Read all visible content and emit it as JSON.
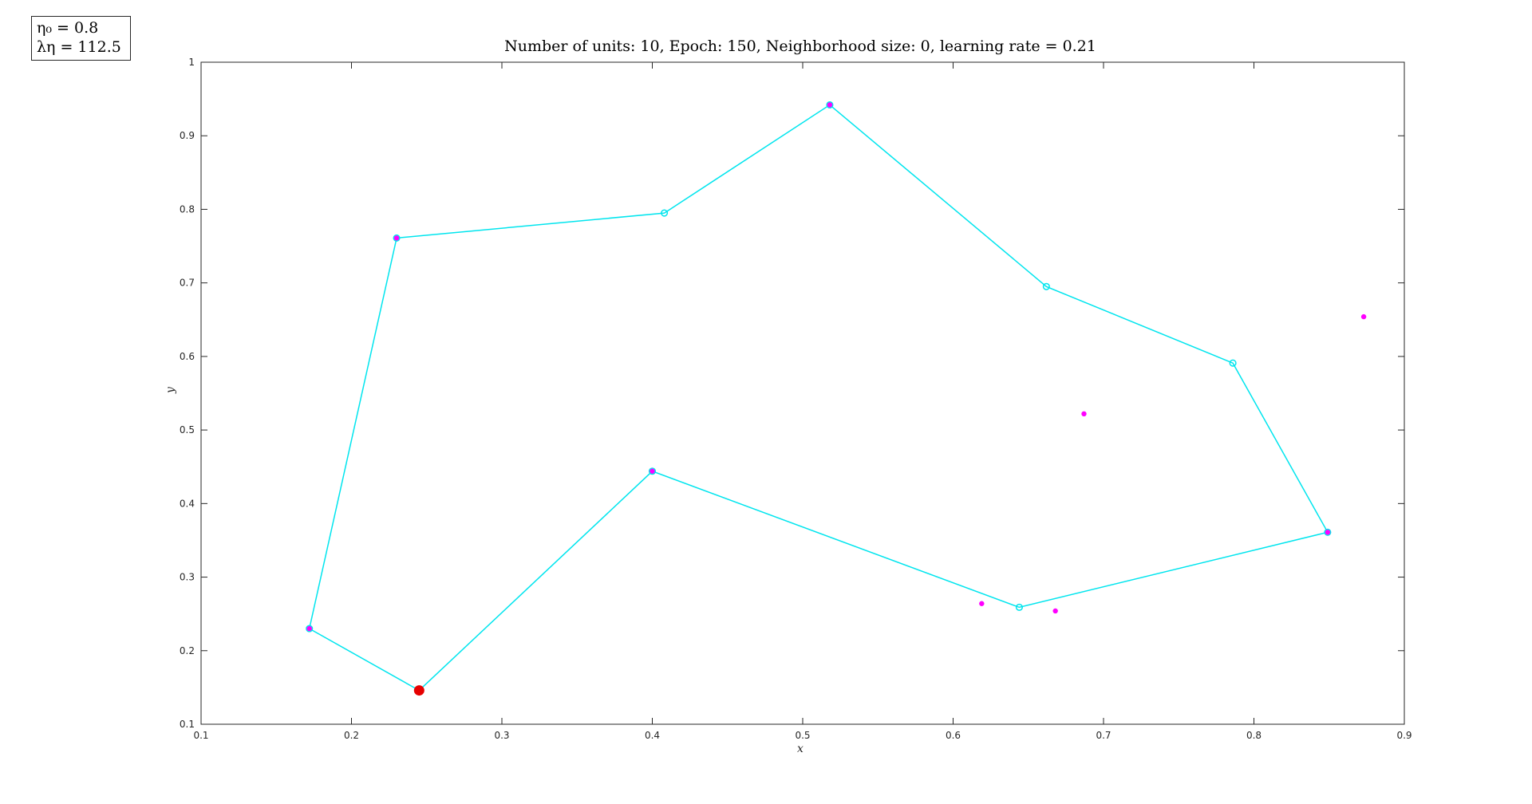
{
  "annotation": {
    "line1": "η₀ = 0.8",
    "line2": "λη = 112.5"
  },
  "chart_data": {
    "type": "line",
    "title": "Number of units: 10, Epoch: 150, Neighborhood size: 0, learning rate = 0.21",
    "xlabel": "x",
    "ylabel": "y",
    "xlim": [
      0.1,
      0.9
    ],
    "ylim": [
      0.1,
      1.0
    ],
    "xticks": [
      "0.1",
      "0.2",
      "0.3",
      "0.4",
      "0.5",
      "0.6",
      "0.7",
      "0.8",
      "0.9"
    ],
    "yticks": [
      "0.1",
      "0.2",
      "0.3",
      "0.4",
      "0.5",
      "0.6",
      "0.7",
      "0.8",
      "0.9",
      "1"
    ],
    "grid": false,
    "colors": {
      "network": "#00e5ee",
      "data_points": "#ff00ff",
      "winner": "#e60000",
      "axes": "#262626"
    },
    "series": [
      {
        "role": "unit-path",
        "x": [
          0.245,
          0.172,
          0.23,
          0.408,
          0.518,
          0.662,
          0.786,
          0.849,
          0.644,
          0.4,
          0.245
        ],
        "y": [
          0.146,
          0.23,
          0.761,
          0.795,
          0.942,
          0.695,
          0.591,
          0.361,
          0.259,
          0.444,
          0.146
        ],
        "closed": true
      },
      {
        "role": "data-points",
        "x": [
          0.172,
          0.23,
          0.518,
          0.849,
          0.4,
          0.619,
          0.668,
          0.687,
          0.873
        ],
        "y": [
          0.23,
          0.761,
          0.942,
          0.361,
          0.444,
          0.264,
          0.254,
          0.522,
          0.654
        ]
      },
      {
        "role": "current-unit",
        "x": [
          0.245
        ],
        "y": [
          0.146
        ]
      }
    ]
  }
}
